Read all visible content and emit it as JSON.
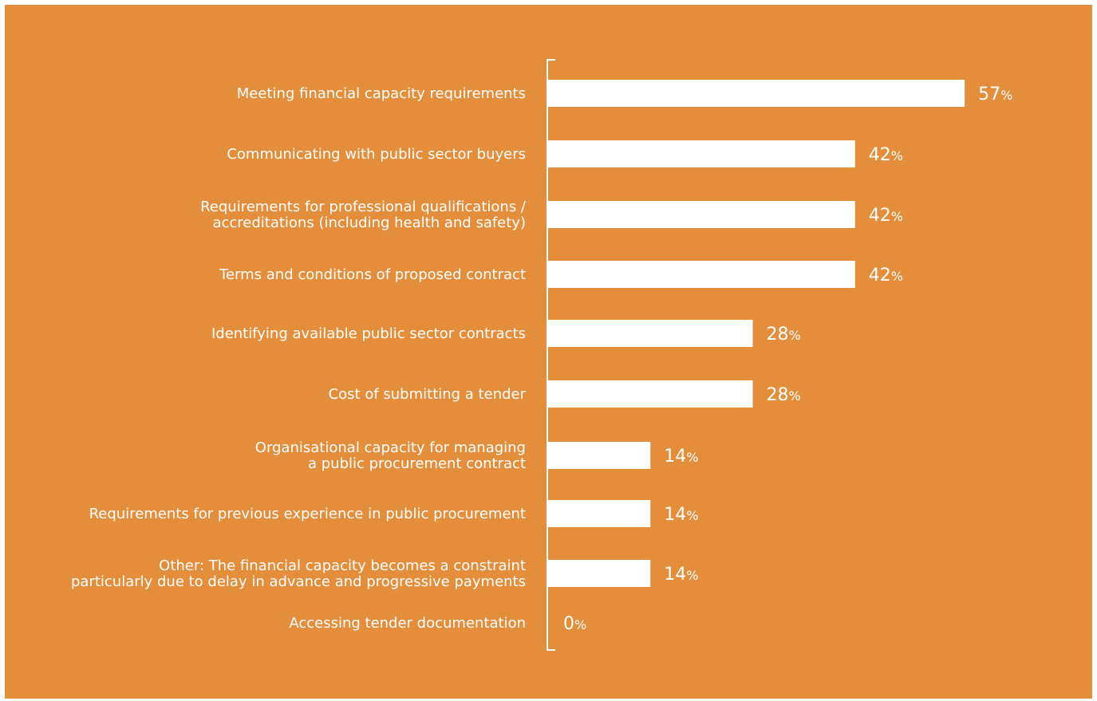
{
  "colors": {
    "background": "#e48e3c",
    "bar": "#ffffff",
    "text": "#ffffff",
    "axis": "#ffffff"
  },
  "chart_data": {
    "type": "bar",
    "orientation": "horizontal",
    "categories": [
      [
        "Meeting financial capacity requirements"
      ],
      [
        "Communicating with public sector buyers"
      ],
      [
        "Requirements for professional qualifications /",
        "accreditations (including health and safety)"
      ],
      [
        "Terms and conditions of proposed contract"
      ],
      [
        "Identifying available public sector contracts"
      ],
      [
        "Cost of submitting a tender"
      ],
      [
        "Organisational capacity for managing",
        "a public procurement contract"
      ],
      [
        "Requirements for previous experience in public procurement"
      ],
      [
        "Other: The financial capacity becomes a constraint",
        "particularly due to delay in advance and progressive payments"
      ],
      [
        "Accessing tender documentation"
      ]
    ],
    "values": [
      57,
      42,
      42,
      42,
      28,
      28,
      14,
      14,
      14,
      0
    ],
    "unit": "%",
    "xlim": [
      0,
      57
    ],
    "grid": false,
    "legend": "none"
  }
}
